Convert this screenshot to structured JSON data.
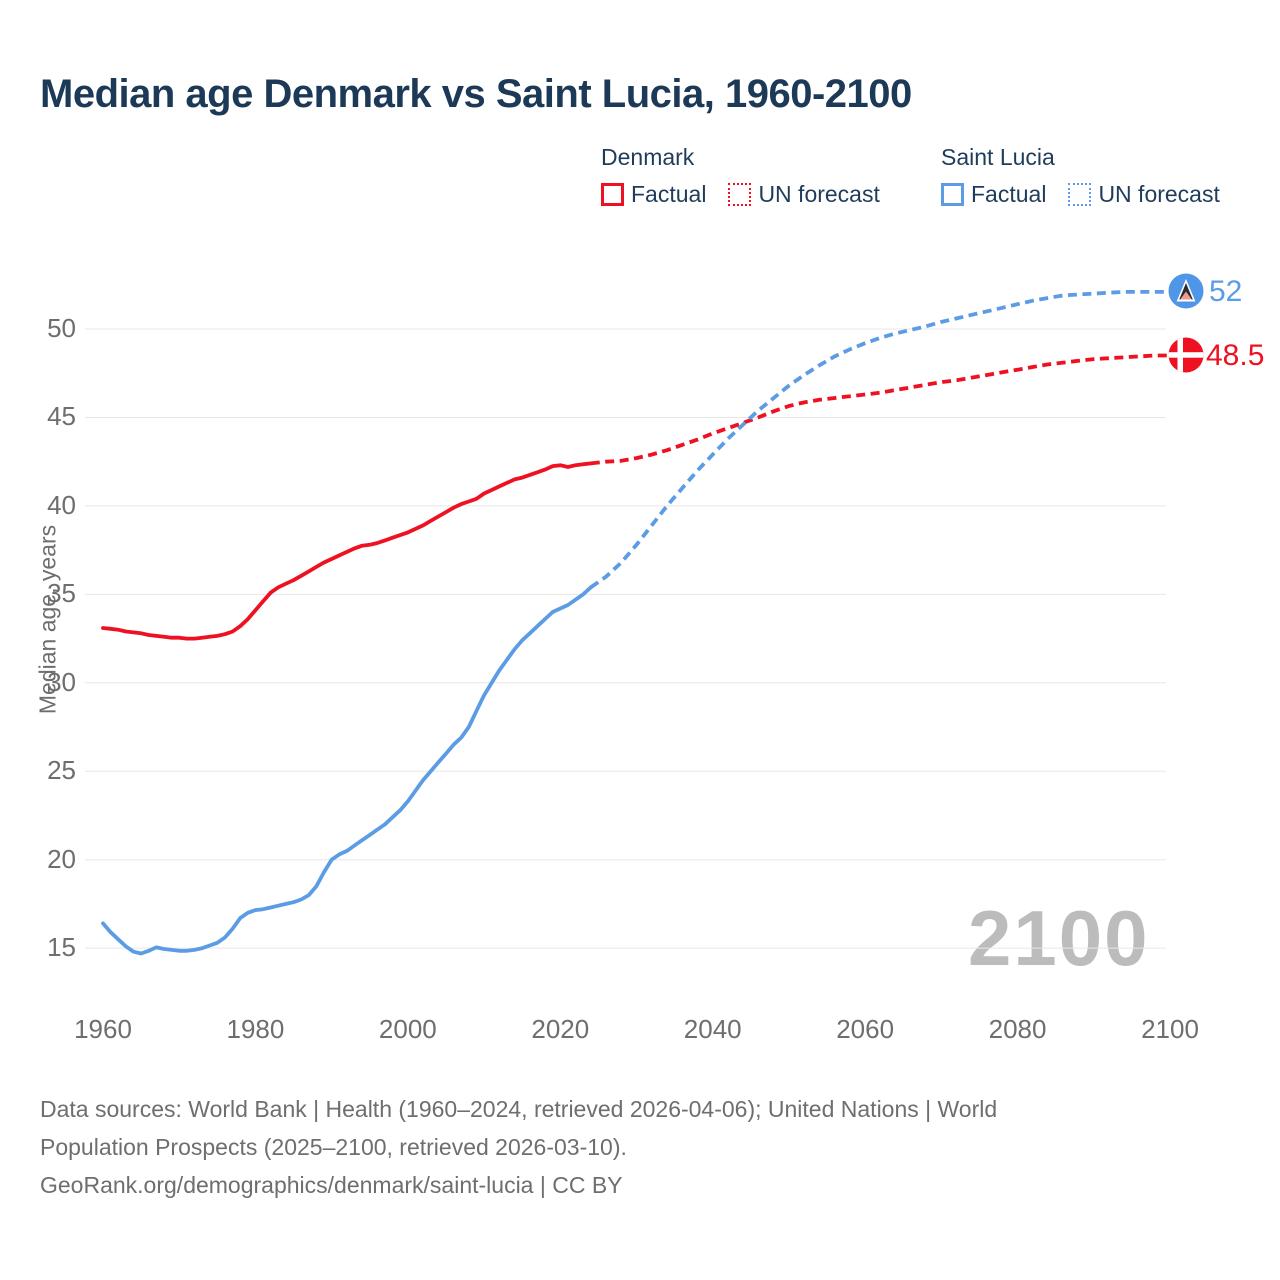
{
  "title": "Median age Denmark vs Saint Lucia, 1960-2100",
  "legend": {
    "groups": [
      {
        "name": "Denmark",
        "color": "#ee1122",
        "items": [
          {
            "label": "Factual",
            "style": "solid"
          },
          {
            "label": "UN forecast",
            "style": "dotted"
          }
        ]
      },
      {
        "name": "Saint Lucia",
        "color": "#5b9ce4",
        "items": [
          {
            "label": "Factual",
            "style": "solid"
          },
          {
            "label": "UN forecast",
            "style": "dotted"
          }
        ]
      }
    ]
  },
  "end_labels": {
    "saint_lucia_value": "52",
    "denmark_value": "48.5"
  },
  "watermark": "2100",
  "footer": {
    "lines": [
      "Data sources: World Bank | Health (1960–2024, retrieved 2026-04-06); United Nations | World",
      "Population Prospects (2025–2100, retrieved 2026-03-10).",
      "GeoRank.org/demographics/denmark/saint-lucia | CC BY"
    ]
  },
  "chart_data": {
    "type": "line",
    "title": "Median age Denmark vs Saint Lucia, 1960-2100",
    "xlabel": "",
    "ylabel": "Median age, years",
    "x_ticks": [
      1960,
      1980,
      2000,
      2020,
      2040,
      2060,
      2080,
      2100
    ],
    "y_ticks": [
      15,
      20,
      25,
      30,
      35,
      40,
      45,
      50
    ],
    "xlim": [
      1958,
      2103
    ],
    "ylim": [
      13.5,
      53.5
    ],
    "grid": "horizontal",
    "legend_position": "top-right",
    "series": [
      {
        "name": "Denmark factual",
        "color": "#ee1122",
        "style": "solid",
        "points": [
          [
            1960,
            33.1
          ],
          [
            1961,
            33.05
          ],
          [
            1962,
            33.0
          ],
          [
            1963,
            32.9
          ],
          [
            1964,
            32.85
          ],
          [
            1965,
            32.8
          ],
          [
            1966,
            32.7
          ],
          [
            1967,
            32.65
          ],
          [
            1968,
            32.6
          ],
          [
            1969,
            32.55
          ],
          [
            1970,
            32.55
          ],
          [
            1971,
            32.5
          ],
          [
            1972,
            32.5
          ],
          [
            1973,
            32.55
          ],
          [
            1974,
            32.6
          ],
          [
            1975,
            32.65
          ],
          [
            1976,
            32.75
          ],
          [
            1977,
            32.9
          ],
          [
            1978,
            33.2
          ],
          [
            1979,
            33.6
          ],
          [
            1980,
            34.1
          ],
          [
            1981,
            34.6
          ],
          [
            1982,
            35.1
          ],
          [
            1983,
            35.4
          ],
          [
            1984,
            35.6
          ],
          [
            1985,
            35.8
          ],
          [
            1986,
            36.05
          ],
          [
            1987,
            36.3
          ],
          [
            1988,
            36.55
          ],
          [
            1989,
            36.8
          ],
          [
            1990,
            37.0
          ],
          [
            1991,
            37.2
          ],
          [
            1992,
            37.4
          ],
          [
            1993,
            37.6
          ],
          [
            1994,
            37.75
          ],
          [
            1995,
            37.8
          ],
          [
            1996,
            37.9
          ],
          [
            1997,
            38.05
          ],
          [
            1998,
            38.2
          ],
          [
            1999,
            38.35
          ],
          [
            2000,
            38.5
          ],
          [
            2001,
            38.7
          ],
          [
            2002,
            38.9
          ],
          [
            2003,
            39.15
          ],
          [
            2004,
            39.4
          ],
          [
            2005,
            39.65
          ],
          [
            2006,
            39.9
          ],
          [
            2007,
            40.1
          ],
          [
            2008,
            40.25
          ],
          [
            2009,
            40.4
          ],
          [
            2010,
            40.7
          ],
          [
            2011,
            40.9
          ],
          [
            2012,
            41.1
          ],
          [
            2013,
            41.3
          ],
          [
            2014,
            41.5
          ],
          [
            2015,
            41.6
          ],
          [
            2016,
            41.75
          ],
          [
            2017,
            41.9
          ],
          [
            2018,
            42.05
          ],
          [
            2019,
            42.25
          ],
          [
            2020,
            42.3
          ],
          [
            2021,
            42.2
          ],
          [
            2022,
            42.3
          ],
          [
            2023,
            42.35
          ],
          [
            2024,
            42.4
          ]
        ]
      },
      {
        "name": "Denmark UN forecast",
        "color": "#ee1122",
        "style": "dashed",
        "points": [
          [
            2024,
            42.4
          ],
          [
            2026,
            42.5
          ],
          [
            2028,
            42.55
          ],
          [
            2030,
            42.7
          ],
          [
            2032,
            42.9
          ],
          [
            2034,
            43.15
          ],
          [
            2036,
            43.45
          ],
          [
            2038,
            43.75
          ],
          [
            2040,
            44.1
          ],
          [
            2042,
            44.4
          ],
          [
            2044,
            44.7
          ],
          [
            2046,
            45.0
          ],
          [
            2048,
            45.35
          ],
          [
            2050,
            45.65
          ],
          [
            2052,
            45.85
          ],
          [
            2054,
            46.0
          ],
          [
            2056,
            46.1
          ],
          [
            2058,
            46.2
          ],
          [
            2060,
            46.3
          ],
          [
            2062,
            46.4
          ],
          [
            2064,
            46.55
          ],
          [
            2066,
            46.7
          ],
          [
            2068,
            46.85
          ],
          [
            2070,
            47.0
          ],
          [
            2072,
            47.1
          ],
          [
            2074,
            47.25
          ],
          [
            2076,
            47.4
          ],
          [
            2078,
            47.55
          ],
          [
            2080,
            47.7
          ],
          [
            2082,
            47.85
          ],
          [
            2084,
            48.0
          ],
          [
            2086,
            48.1
          ],
          [
            2088,
            48.2
          ],
          [
            2090,
            48.3
          ],
          [
            2092,
            48.35
          ],
          [
            2094,
            48.4
          ],
          [
            2096,
            48.45
          ],
          [
            2098,
            48.5
          ],
          [
            2100,
            48.5
          ]
        ]
      },
      {
        "name": "Saint Lucia factual",
        "color": "#5b9ce4",
        "style": "solid",
        "points": [
          [
            1960,
            16.4
          ],
          [
            1961,
            15.9
          ],
          [
            1962,
            15.5
          ],
          [
            1963,
            15.1
          ],
          [
            1964,
            14.8
          ],
          [
            1965,
            14.7
          ],
          [
            1966,
            14.85
          ],
          [
            1967,
            15.05
          ],
          [
            1968,
            14.95
          ],
          [
            1969,
            14.9
          ],
          [
            1970,
            14.85
          ],
          [
            1971,
            14.85
          ],
          [
            1972,
            14.9
          ],
          [
            1973,
            15.0
          ],
          [
            1974,
            15.15
          ],
          [
            1975,
            15.3
          ],
          [
            1976,
            15.6
          ],
          [
            1977,
            16.1
          ],
          [
            1978,
            16.7
          ],
          [
            1979,
            17.0
          ],
          [
            1980,
            17.15
          ],
          [
            1981,
            17.2
          ],
          [
            1982,
            17.3
          ],
          [
            1983,
            17.4
          ],
          [
            1984,
            17.5
          ],
          [
            1985,
            17.6
          ],
          [
            1986,
            17.75
          ],
          [
            1987,
            18.0
          ],
          [
            1988,
            18.5
          ],
          [
            1989,
            19.3
          ],
          [
            1990,
            20.0
          ],
          [
            1991,
            20.3
          ],
          [
            1992,
            20.5
          ],
          [
            1993,
            20.8
          ],
          [
            1994,
            21.1
          ],
          [
            1995,
            21.4
          ],
          [
            1996,
            21.7
          ],
          [
            1997,
            22.0
          ],
          [
            1998,
            22.4
          ],
          [
            1999,
            22.8
          ],
          [
            2000,
            23.3
          ],
          [
            2001,
            23.9
          ],
          [
            2002,
            24.5
          ],
          [
            2003,
            25.0
          ],
          [
            2004,
            25.5
          ],
          [
            2005,
            26.0
          ],
          [
            2006,
            26.5
          ],
          [
            2007,
            26.9
          ],
          [
            2008,
            27.5
          ],
          [
            2009,
            28.4
          ],
          [
            2010,
            29.3
          ],
          [
            2011,
            30.0
          ],
          [
            2012,
            30.7
          ],
          [
            2013,
            31.3
          ],
          [
            2014,
            31.9
          ],
          [
            2015,
            32.4
          ],
          [
            2016,
            32.8
          ],
          [
            2017,
            33.2
          ],
          [
            2018,
            33.6
          ],
          [
            2019,
            34.0
          ],
          [
            2020,
            34.2
          ],
          [
            2021,
            34.4
          ],
          [
            2022,
            34.7
          ],
          [
            2023,
            35.0
          ],
          [
            2024,
            35.4
          ]
        ]
      },
      {
        "name": "Saint Lucia UN forecast",
        "color": "#5b9ce4",
        "style": "dashed",
        "points": [
          [
            2024,
            35.4
          ],
          [
            2026,
            36.0
          ],
          [
            2028,
            36.8
          ],
          [
            2030,
            37.8
          ],
          [
            2032,
            38.9
          ],
          [
            2034,
            40.0
          ],
          [
            2036,
            41.0
          ],
          [
            2038,
            42.0
          ],
          [
            2040,
            42.9
          ],
          [
            2042,
            43.8
          ],
          [
            2044,
            44.6
          ],
          [
            2046,
            45.4
          ],
          [
            2048,
            46.1
          ],
          [
            2050,
            46.8
          ],
          [
            2052,
            47.4
          ],
          [
            2054,
            47.95
          ],
          [
            2056,
            48.45
          ],
          [
            2058,
            48.85
          ],
          [
            2060,
            49.2
          ],
          [
            2062,
            49.5
          ],
          [
            2064,
            49.75
          ],
          [
            2066,
            49.95
          ],
          [
            2068,
            50.15
          ],
          [
            2070,
            50.4
          ],
          [
            2072,
            50.6
          ],
          [
            2074,
            50.8
          ],
          [
            2076,
            51.0
          ],
          [
            2078,
            51.2
          ],
          [
            2080,
            51.4
          ],
          [
            2082,
            51.6
          ],
          [
            2084,
            51.75
          ],
          [
            2086,
            51.9
          ],
          [
            2088,
            51.95
          ],
          [
            2090,
            52.0
          ],
          [
            2092,
            52.05
          ],
          [
            2094,
            52.1
          ],
          [
            2096,
            52.1
          ],
          [
            2098,
            52.1
          ],
          [
            2100,
            52.1
          ]
        ]
      }
    ],
    "end_markers": [
      {
        "series": "Saint Lucia UN forecast",
        "flag": "saint-lucia",
        "value": 52
      },
      {
        "series": "Denmark UN forecast",
        "flag": "denmark",
        "value": 48.5
      }
    ]
  }
}
